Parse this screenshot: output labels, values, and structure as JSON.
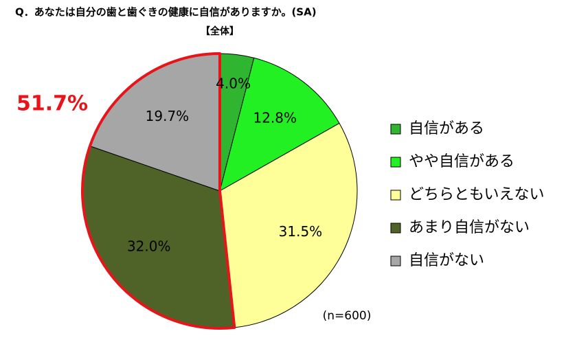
{
  "chart_data": {
    "type": "pie",
    "title": "Q．あなたは自分の歯と歯ぐきの健康に自信がありますか。(SA)",
    "subtitle": "【全体】",
    "categories": [
      "自信がある",
      "やや自信がある",
      "どちらともいえない",
      "あまり自信がない",
      "自信がない"
    ],
    "values": [
      4.0,
      12.8,
      31.5,
      32.0,
      19.7
    ],
    "value_labels": [
      "4.0%",
      "12.8%",
      "31.5%",
      "32.0%",
      "19.7%"
    ],
    "colors": [
      "#2fb52f",
      "#22f022",
      "#ffff99",
      "#4f6228",
      "#a6a6a6"
    ],
    "annotation": "51.7%",
    "note": "(n=600)"
  }
}
